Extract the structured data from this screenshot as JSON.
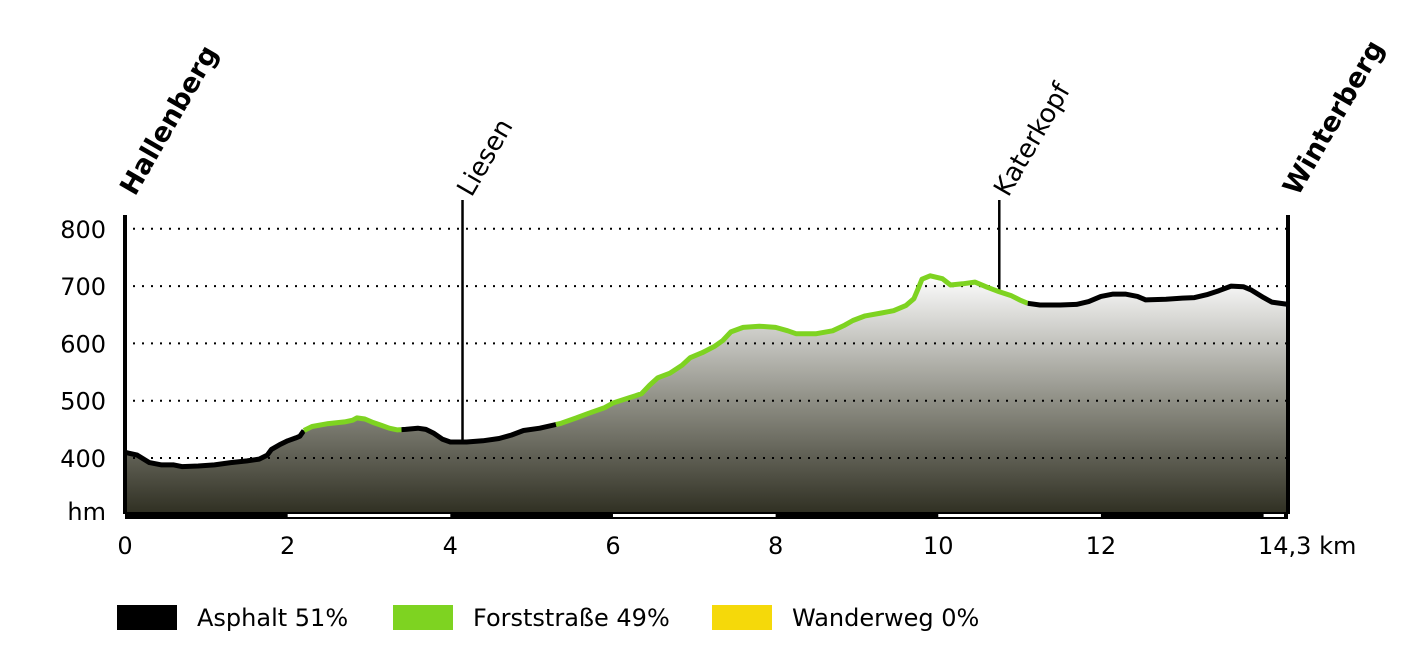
{
  "chart_data": {
    "type": "area",
    "xlabel": "km",
    "ylabel": "hm",
    "xlim": [
      0,
      14.3
    ],
    "ylim": [
      300,
      830
    ],
    "x_ticks": [
      {
        "value": 0,
        "label": "0"
      },
      {
        "value": 2,
        "label": "2"
      },
      {
        "value": 4,
        "label": "4"
      },
      {
        "value": 6,
        "label": "6"
      },
      {
        "value": 8,
        "label": "8"
      },
      {
        "value": 10,
        "label": "10"
      },
      {
        "value": 12,
        "label": "12"
      },
      {
        "value": 14.3,
        "label": "14,3 km"
      }
    ],
    "y_ticks": [
      {
        "value": 400,
        "label": "400"
      },
      {
        "value": 500,
        "label": "500"
      },
      {
        "value": 600,
        "label": "600"
      },
      {
        "value": 700,
        "label": "700"
      },
      {
        "value": 800,
        "label": "800"
      }
    ],
    "unit_label": "hm",
    "grid": true,
    "profile": [
      [
        0,
        410
      ],
      [
        0.15,
        405
      ],
      [
        0.3,
        392
      ],
      [
        0.45,
        388
      ],
      [
        0.6,
        388
      ],
      [
        0.7,
        385
      ],
      [
        0.9,
        386
      ],
      [
        1.1,
        388
      ],
      [
        1.3,
        392
      ],
      [
        1.5,
        395
      ],
      [
        1.65,
        398
      ],
      [
        1.75,
        405
      ],
      [
        1.8,
        415
      ],
      [
        1.9,
        423
      ],
      [
        2.0,
        430
      ],
      [
        2.1,
        435
      ],
      [
        2.15,
        438
      ],
      [
        2.2,
        448
      ],
      [
        2.3,
        455
      ],
      [
        2.5,
        460
      ],
      [
        2.7,
        463
      ],
      [
        2.8,
        466
      ],
      [
        2.85,
        470
      ],
      [
        2.95,
        468
      ],
      [
        3.05,
        462
      ],
      [
        3.15,
        457
      ],
      [
        3.25,
        452
      ],
      [
        3.35,
        449
      ],
      [
        3.45,
        450
      ],
      [
        3.6,
        452
      ],
      [
        3.7,
        450
      ],
      [
        3.8,
        443
      ],
      [
        3.9,
        433
      ],
      [
        4.0,
        428
      ],
      [
        4.2,
        428
      ],
      [
        4.4,
        430
      ],
      [
        4.6,
        434
      ],
      [
        4.75,
        440
      ],
      [
        4.9,
        448
      ],
      [
        5.1,
        452
      ],
      [
        5.35,
        460
      ],
      [
        5.55,
        470
      ],
      [
        5.7,
        478
      ],
      [
        5.9,
        488
      ],
      [
        6.0,
        496
      ],
      [
        6.2,
        505
      ],
      [
        6.35,
        512
      ],
      [
        6.45,
        527
      ],
      [
        6.55,
        540
      ],
      [
        6.7,
        548
      ],
      [
        6.85,
        562
      ],
      [
        6.95,
        575
      ],
      [
        7.1,
        584
      ],
      [
        7.25,
        595
      ],
      [
        7.35,
        605
      ],
      [
        7.45,
        620
      ],
      [
        7.6,
        628
      ],
      [
        7.8,
        630
      ],
      [
        8.0,
        628
      ],
      [
        8.15,
        622
      ],
      [
        8.25,
        617
      ],
      [
        8.5,
        617
      ],
      [
        8.7,
        622
      ],
      [
        8.85,
        632
      ],
      [
        8.95,
        640
      ],
      [
        9.1,
        648
      ],
      [
        9.3,
        653
      ],
      [
        9.45,
        657
      ],
      [
        9.6,
        666
      ],
      [
        9.7,
        678
      ],
      [
        9.75,
        695
      ],
      [
        9.8,
        712
      ],
      [
        9.9,
        718
      ],
      [
        10.05,
        713
      ],
      [
        10.15,
        702
      ],
      [
        10.3,
        704
      ],
      [
        10.45,
        707
      ],
      [
        10.6,
        698
      ],
      [
        10.75,
        690
      ],
      [
        10.9,
        683
      ],
      [
        11.0,
        676
      ],
      [
        11.1,
        670
      ],
      [
        11.25,
        667
      ],
      [
        11.5,
        667
      ],
      [
        11.7,
        668
      ],
      [
        11.85,
        673
      ],
      [
        12.0,
        682
      ],
      [
        12.15,
        686
      ],
      [
        12.3,
        686
      ],
      [
        12.45,
        682
      ],
      [
        12.55,
        676
      ],
      [
        12.8,
        677
      ],
      [
        13.0,
        679
      ],
      [
        13.15,
        680
      ],
      [
        13.3,
        685
      ],
      [
        13.45,
        692
      ],
      [
        13.6,
        700
      ],
      [
        13.75,
        699
      ],
      [
        13.85,
        693
      ],
      [
        14.0,
        680
      ],
      [
        14.1,
        672
      ],
      [
        14.3,
        668
      ]
    ],
    "segments": [
      {
        "surface": "asphalt",
        "from": 0,
        "to": 2.2
      },
      {
        "surface": "forst",
        "from": 2.2,
        "to": 3.4
      },
      {
        "surface": "asphalt",
        "from": 3.4,
        "to": 5.3
      },
      {
        "surface": "forst",
        "from": 5.3,
        "to": 11.1
      },
      {
        "surface": "asphalt",
        "from": 11.1,
        "to": 14.3
      }
    ],
    "waypoints": [
      {
        "name": "Hallenberg",
        "km": 0,
        "bold": true,
        "label_height": 820
      },
      {
        "name": "Liesen",
        "km": 4.15,
        "bold": false,
        "label_height": 840
      },
      {
        "name": "Katerkopf",
        "km": 10.75,
        "bold": false,
        "label_height": 840
      },
      {
        "name": "Winterberg",
        "km": 14.3,
        "bold": true,
        "label_height": 820
      }
    ],
    "legend": [
      {
        "label": "Asphalt 51%",
        "color": "#000000",
        "surface": "asphalt"
      },
      {
        "label": "Forststraße 49%",
        "color": "#7ed321",
        "surface": "forst"
      },
      {
        "label": "Wanderweg 0%",
        "color": "#f5d90a",
        "surface": "wanderweg"
      }
    ],
    "colors": {
      "asphalt": "#000000",
      "forst": "#7ed321",
      "fill_top": "#ffffff",
      "fill_bottom": "#2f2f22"
    }
  }
}
